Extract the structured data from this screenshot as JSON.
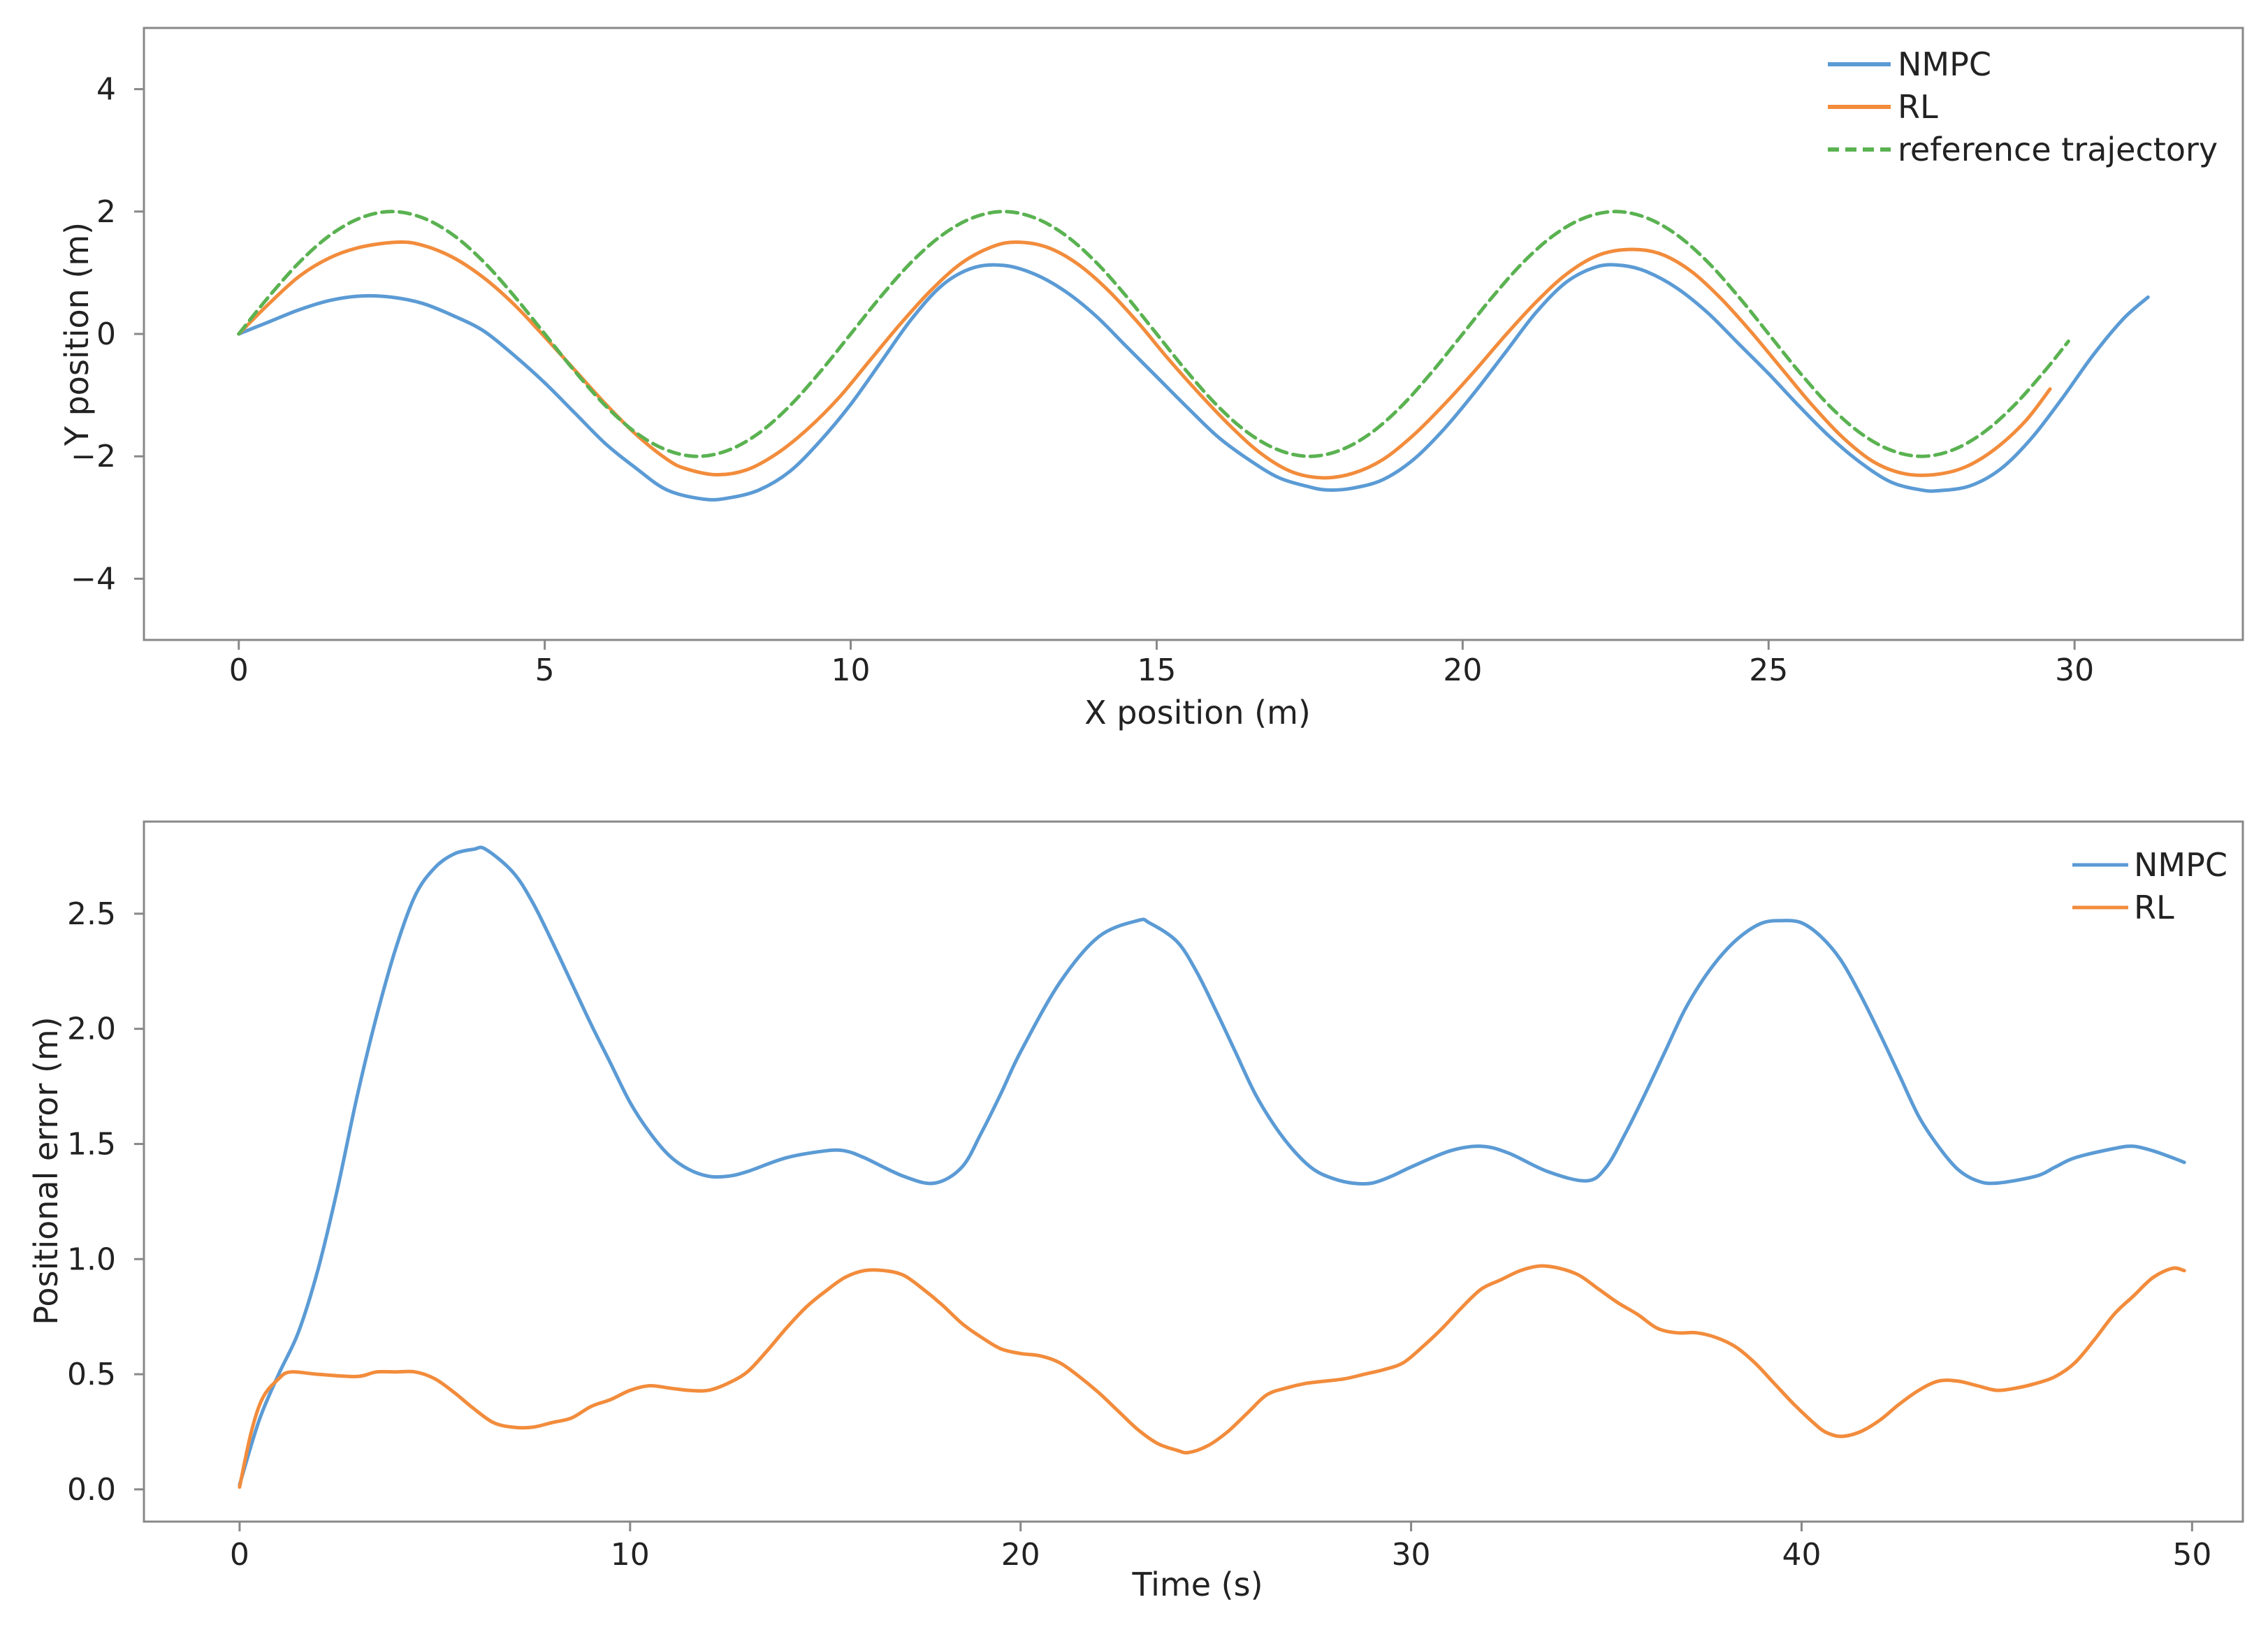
{
  "chart_data": [
    {
      "type": "line",
      "xlabel": "X position (m)",
      "ylabel": "Y position (m)",
      "xlim": [
        -1.55,
        32.75
      ],
      "ylim": [
        -5,
        5
      ],
      "x_ticks": [
        0,
        5,
        10,
        15,
        20,
        25,
        30
      ],
      "y_ticks": [
        -4,
        -2,
        0,
        2,
        4
      ],
      "x_tick_labels": [
        "0",
        "5",
        "10",
        "15",
        "20",
        "25",
        "30"
      ],
      "y_tick_labels": [
        "−4",
        "−2",
        "0",
        "2",
        "4"
      ],
      "grid": false,
      "legend_position": "top-right",
      "series": [
        {
          "name": "NMPC",
          "color": "#5b9bd5",
          "dash": "solid",
          "x": [
            0,
            0.5,
            1.0,
            1.5,
            2.0,
            2.5,
            3.0,
            3.5,
            4.0,
            4.5,
            5.0,
            5.5,
            6.0,
            6.5,
            7.0,
            7.6,
            8.0,
            8.5,
            9.0,
            9.5,
            10.0,
            10.5,
            11.0,
            11.5,
            12.0,
            12.5,
            13.0,
            13.5,
            14.0,
            14.5,
            15.0,
            15.5,
            16.0,
            16.5,
            17.0,
            17.5,
            17.8,
            18.2,
            18.7,
            19.2,
            19.7,
            20.2,
            20.7,
            21.2,
            21.7,
            22.2,
            22.6,
            23.0,
            23.5,
            24.0,
            24.5,
            25.0,
            25.5,
            26.0,
            26.5,
            27.0,
            27.5,
            27.8,
            28.3,
            28.8,
            29.3,
            29.8,
            30.3,
            30.8,
            31.2
          ],
          "y": [
            0,
            0.2,
            0.4,
            0.55,
            0.62,
            0.6,
            0.5,
            0.3,
            0.05,
            -0.35,
            -0.8,
            -1.3,
            -1.8,
            -2.2,
            -2.55,
            -2.7,
            -2.68,
            -2.55,
            -2.25,
            -1.75,
            -1.15,
            -0.45,
            0.25,
            0.8,
            1.08,
            1.12,
            0.98,
            0.7,
            0.3,
            -0.2,
            -0.7,
            -1.2,
            -1.68,
            -2.05,
            -2.35,
            -2.5,
            -2.55,
            -2.52,
            -2.38,
            -2.05,
            -1.55,
            -0.95,
            -0.3,
            0.35,
            0.85,
            1.1,
            1.12,
            1.02,
            0.75,
            0.35,
            -0.15,
            -0.65,
            -1.18,
            -1.68,
            -2.1,
            -2.42,
            -2.55,
            -2.56,
            -2.48,
            -2.2,
            -1.7,
            -1.05,
            -0.35,
            0.25,
            0.6
          ]
        },
        {
          "name": "RL",
          "color": "#f28c3c",
          "dash": "solid",
          "x": [
            0,
            0.5,
            1.0,
            1.5,
            2.0,
            2.6,
            3.0,
            3.5,
            4.0,
            4.5,
            5.0,
            5.5,
            6.0,
            6.5,
            7.0,
            7.3,
            7.8,
            8.3,
            8.8,
            9.3,
            9.8,
            10.3,
            10.8,
            11.3,
            11.8,
            12.3,
            12.7,
            13.2,
            13.7,
            14.2,
            14.7,
            15.2,
            15.7,
            16.2,
            16.7,
            17.2,
            17.7,
            18.2,
            18.7,
            19.2,
            19.7,
            20.2,
            20.7,
            21.2,
            21.7,
            22.2,
            22.7,
            23.2,
            23.7,
            24.2,
            24.7,
            25.2,
            25.7,
            26.2,
            26.7,
            27.2,
            27.7,
            28.2,
            28.7,
            29.2,
            29.6
          ],
          "y": [
            0,
            0.5,
            0.95,
            1.25,
            1.42,
            1.5,
            1.45,
            1.25,
            0.92,
            0.48,
            -0.05,
            -0.6,
            -1.15,
            -1.65,
            -2.05,
            -2.2,
            -2.3,
            -2.22,
            -1.95,
            -1.55,
            -1.05,
            -0.45,
            0.15,
            0.7,
            1.15,
            1.42,
            1.5,
            1.42,
            1.15,
            0.72,
            0.18,
            -0.42,
            -0.98,
            -1.5,
            -1.95,
            -2.25,
            -2.35,
            -2.28,
            -2.05,
            -1.65,
            -1.15,
            -0.6,
            -0.02,
            0.52,
            0.98,
            1.28,
            1.38,
            1.32,
            1.05,
            0.6,
            0.05,
            -0.55,
            -1.15,
            -1.68,
            -2.08,
            -2.28,
            -2.3,
            -2.18,
            -1.88,
            -1.42,
            -0.9
          ]
        },
        {
          "name": "reference trajectory",
          "color": "#5ab251",
          "dash": "dashed",
          "x": [
            0,
            0.5,
            1.0,
            1.5,
            2.0,
            2.5,
            3.0,
            3.5,
            4.0,
            4.5,
            5.0,
            5.5,
            6.0,
            6.5,
            7.0,
            7.5,
            8.0,
            8.5,
            9.0,
            9.5,
            10.0,
            10.5,
            11.0,
            11.5,
            12.0,
            12.5,
            13.0,
            13.5,
            14.0,
            14.5,
            15.0,
            15.5,
            16.0,
            16.5,
            17.0,
            17.5,
            18.0,
            18.5,
            19.0,
            19.5,
            20.0,
            20.5,
            21.0,
            21.5,
            22.0,
            22.5,
            23.0,
            23.5,
            24.0,
            24.5,
            25.0,
            25.5,
            26.0,
            26.5,
            27.0,
            27.5,
            28.0,
            28.5,
            29.0,
            29.5,
            29.9
          ],
          "y": [
            0,
            0.62,
            1.18,
            1.62,
            1.9,
            2.0,
            1.9,
            1.62,
            1.18,
            0.62,
            0,
            -0.62,
            -1.18,
            -1.62,
            -1.9,
            -2.0,
            -1.9,
            -1.62,
            -1.18,
            -0.62,
            0,
            0.62,
            1.18,
            1.62,
            1.9,
            2.0,
            1.9,
            1.62,
            1.18,
            0.62,
            0,
            -0.62,
            -1.18,
            -1.62,
            -1.9,
            -2.0,
            -1.9,
            -1.62,
            -1.18,
            -0.62,
            0,
            0.62,
            1.18,
            1.62,
            1.9,
            2.0,
            1.9,
            1.62,
            1.18,
            0.62,
            0,
            -0.62,
            -1.18,
            -1.62,
            -1.9,
            -2.0,
            -1.9,
            -1.62,
            -1.18,
            -0.62,
            -0.12
          ]
        }
      ]
    },
    {
      "type": "line",
      "xlabel": "Time (s)",
      "ylabel": "Positional error (m)",
      "xlim": [
        -2.45,
        51.3
      ],
      "ylim": [
        -0.14,
        2.9
      ],
      "x_ticks": [
        0,
        10,
        20,
        30,
        40,
        50
      ],
      "y_ticks": [
        0,
        0.5,
        1.0,
        1.5,
        2.0,
        2.5
      ],
      "x_tick_labels": [
        "0",
        "10",
        "20",
        "30",
        "40",
        "50"
      ],
      "y_tick_labels": [
        "0.0",
        "0.5",
        "1.0",
        "1.5",
        "2.0",
        "2.5"
      ],
      "grid": false,
      "legend_position": "top-right",
      "series": [
        {
          "name": "NMPC",
          "color": "#5b9bd5",
          "dash": "solid",
          "x": [
            0,
            0.5,
            1.0,
            1.5,
            2.0,
            2.5,
            3.0,
            3.5,
            4.0,
            4.5,
            5.0,
            5.5,
            6.0,
            6.3,
            7.0,
            7.5,
            8.0,
            8.5,
            9.0,
            9.5,
            10.0,
            10.5,
            11.0,
            11.5,
            12.0,
            12.5,
            13.0,
            14.0,
            15.0,
            15.5,
            16.0,
            17.0,
            17.8,
            18.5,
            19.0,
            19.5,
            20.0,
            21.0,
            22.0,
            23.0,
            23.3,
            24.0,
            24.5,
            25.0,
            25.5,
            26.0,
            26.5,
            27.0,
            27.5,
            28.0,
            28.5,
            29.0,
            29.5,
            30.0,
            31.0,
            31.8,
            32.5,
            33.5,
            34.5,
            35.0,
            35.5,
            36.0,
            36.5,
            37.0,
            37.5,
            38.0,
            38.5,
            39.0,
            39.5,
            40.0,
            40.5,
            41.0,
            41.5,
            42.0,
            42.5,
            43.0,
            43.5,
            44.0,
            44.5,
            45.0,
            46.0,
            46.5,
            47.0,
            48.0,
            48.5,
            49.0,
            49.5,
            49.8
          ],
          "y": [
            0.02,
            0.3,
            0.5,
            0.68,
            0.95,
            1.3,
            1.7,
            2.05,
            2.35,
            2.58,
            2.7,
            2.76,
            2.78,
            2.78,
            2.68,
            2.55,
            2.38,
            2.2,
            2.02,
            1.85,
            1.68,
            1.55,
            1.45,
            1.39,
            1.36,
            1.36,
            1.38,
            1.44,
            1.47,
            1.47,
            1.44,
            1.36,
            1.33,
            1.4,
            1.55,
            1.72,
            1.9,
            2.2,
            2.4,
            2.47,
            2.46,
            2.38,
            2.25,
            2.08,
            1.9,
            1.72,
            1.58,
            1.47,
            1.39,
            1.35,
            1.33,
            1.33,
            1.36,
            1.4,
            1.47,
            1.49,
            1.46,
            1.38,
            1.34,
            1.4,
            1.55,
            1.72,
            1.9,
            2.08,
            2.22,
            2.33,
            2.41,
            2.46,
            2.47,
            2.46,
            2.4,
            2.3,
            2.15,
            1.98,
            1.8,
            1.62,
            1.49,
            1.39,
            1.34,
            1.33,
            1.36,
            1.4,
            1.44,
            1.48,
            1.49,
            1.47,
            1.44,
            1.42
          ]
        },
        {
          "name": "RL",
          "color": "#f28c3c",
          "dash": "solid",
          "x": [
            0,
            0.3,
            0.6,
            1.0,
            1.3,
            2.0,
            3.0,
            3.5,
            4.0,
            4.5,
            5.0,
            5.5,
            6.0,
            6.5,
            7.0,
            7.5,
            8.0,
            8.5,
            9.0,
            9.5,
            10.0,
            10.5,
            11.0,
            11.5,
            12.0,
            12.5,
            13.0,
            13.5,
            14.0,
            14.5,
            15.0,
            15.5,
            16.0,
            16.5,
            17.0,
            17.5,
            18.0,
            18.5,
            19.0,
            19.5,
            20.0,
            20.5,
            21.0,
            21.5,
            22.0,
            22.5,
            23.0,
            23.5,
            24.0,
            24.3,
            24.8,
            25.3,
            25.8,
            26.3,
            26.8,
            27.3,
            27.8,
            28.3,
            28.8,
            29.3,
            29.8,
            30.3,
            30.8,
            31.3,
            31.8,
            32.3,
            32.8,
            33.3,
            33.8,
            34.3,
            34.8,
            35.3,
            35.8,
            36.3,
            36.8,
            37.3,
            37.8,
            38.3,
            38.8,
            39.3,
            39.8,
            40.3,
            40.6,
            41.0,
            41.5,
            42.0,
            42.5,
            43.0,
            43.5,
            44.0,
            44.5,
            45.0,
            45.5,
            46.0,
            46.5,
            47.0,
            47.5,
            48.0,
            48.5,
            49.0,
            49.5,
            49.8
          ],
          "y": [
            0.01,
            0.25,
            0.4,
            0.48,
            0.51,
            0.5,
            0.49,
            0.51,
            0.51,
            0.51,
            0.48,
            0.42,
            0.35,
            0.29,
            0.27,
            0.27,
            0.29,
            0.31,
            0.36,
            0.39,
            0.43,
            0.45,
            0.44,
            0.43,
            0.43,
            0.46,
            0.51,
            0.6,
            0.7,
            0.79,
            0.86,
            0.92,
            0.95,
            0.95,
            0.93,
            0.87,
            0.8,
            0.72,
            0.66,
            0.61,
            0.59,
            0.58,
            0.55,
            0.49,
            0.42,
            0.34,
            0.26,
            0.2,
            0.17,
            0.16,
            0.19,
            0.25,
            0.33,
            0.41,
            0.44,
            0.46,
            0.47,
            0.48,
            0.5,
            0.52,
            0.55,
            0.62,
            0.7,
            0.79,
            0.87,
            0.91,
            0.95,
            0.97,
            0.96,
            0.93,
            0.87,
            0.81,
            0.76,
            0.7,
            0.68,
            0.68,
            0.66,
            0.62,
            0.55,
            0.46,
            0.37,
            0.29,
            0.25,
            0.23,
            0.25,
            0.3,
            0.37,
            0.43,
            0.47,
            0.47,
            0.45,
            0.43,
            0.44,
            0.46,
            0.49,
            0.55,
            0.65,
            0.76,
            0.84,
            0.92,
            0.96,
            0.95
          ]
        }
      ]
    }
  ]
}
